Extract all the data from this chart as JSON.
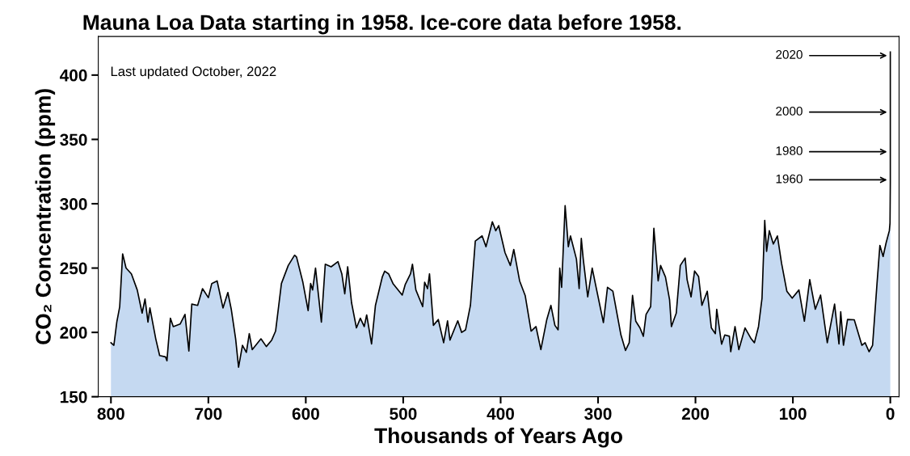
{
  "chart_data": {
    "type": "area",
    "title": "Mauna Loa Data starting in 1958. Ice-core data before 1958.",
    "xlabel": "Thousands of Years Ago",
    "ylabel": "CO₂ Concentration (ppm)",
    "annotations": [
      "Last updated October, 2022",
      "2020",
      "2000",
      "1980",
      "1960"
    ],
    "x": [
      800,
      797,
      794,
      791,
      788,
      784.5,
      779,
      773,
      768,
      765,
      762,
      760,
      754,
      750,
      744,
      742.5,
      739,
      736,
      729,
      724,
      720,
      717,
      711,
      706,
      700,
      696.5,
      691,
      685,
      680,
      676.5,
      672,
      669,
      665,
      661,
      658,
      655,
      646,
      640.5,
      635,
      631,
      625,
      618,
      611.5,
      609.5,
      603,
      597.6,
      595,
      593,
      590,
      584,
      580,
      574,
      567,
      563,
      560,
      557,
      553,
      548,
      544,
      540,
      537.5,
      532.5,
      528.5,
      521.5,
      519,
      515,
      510.5,
      501,
      498,
      492.5,
      490.5,
      487,
      480,
      478,
      475,
      473,
      469,
      464,
      458.5,
      454.5,
      452,
      444,
      440,
      436,
      431,
      426,
      419,
      415,
      408.5,
      405,
      402,
      395.5,
      390,
      386.5,
      380.5,
      374.8,
      368.7,
      363.7,
      358.7,
      352.6,
      348.4,
      344.3,
      341,
      339.3,
      337.4,
      333.8,
      330.5,
      328.3,
      322.2,
      319.4,
      317.2,
      315.2,
      310.6,
      306,
      302.8,
      294.5,
      290.3,
      284.8,
      276.5,
      271.8,
      268,
      264.6,
      261.3,
      257,
      253.5,
      250.7,
      246,
      242.7,
      238.3,
      235.8,
      230.8,
      226.6,
      224.7,
      219.7,
      215.6,
      210.6,
      208.6,
      204.5,
      200.9,
      196.8,
      193.4,
      187.9,
      183.7,
      179.6,
      178.2,
      173.2,
      169.9,
      165.2,
      163.8,
      159.4,
      155.5,
      149.1,
      142.8,
      139.5,
      135.3,
      131.7,
      128.9,
      127,
      124.2,
      120.1,
      115.9,
      111.7,
      106.2,
      100.7,
      93.8,
      88.2,
      82.7,
      77,
      71.6,
      64.7,
      57.2,
      52.7,
      50.9,
      48.1,
      43.9,
      37,
      29.2,
      25.9,
      21.8,
      18.2,
      13.5,
      10.7,
      7.4,
      4.3,
      1,
      0.3,
      0,
      0,
      0,
      0
    ],
    "series": [
      {
        "color": "#c5d9f1",
        "values": [
          192,
          190,
          208,
          220,
          261,
          250,
          245.5,
          233,
          215,
          226,
          208,
          219,
          195,
          182,
          181,
          178,
          211,
          204.5,
          206.5,
          214,
          185.5,
          222,
          221,
          234,
          227,
          238,
          240,
          219,
          231,
          218,
          195,
          173,
          190,
          184.5,
          199,
          186.6,
          195,
          189,
          194,
          201,
          238,
          252,
          260,
          258.6,
          239,
          217,
          238,
          233,
          250,
          208,
          253,
          251,
          255,
          245.5,
          230,
          251,
          223,
          203.5,
          211,
          204.5,
          213.6,
          191,
          221,
          243,
          247.6,
          245.5,
          238,
          229,
          237,
          245.5,
          253,
          233,
          220,
          239,
          234,
          245.5,
          205.5,
          210,
          192,
          209,
          194,
          209,
          200,
          202,
          221,
          271,
          275,
          266.6,
          286,
          279,
          283,
          262,
          252,
          264.5,
          240,
          228.7,
          201,
          204.5,
          186.6,
          210,
          221,
          205.5,
          202,
          250,
          235,
          298.5,
          266.6,
          275,
          257,
          234,
          273,
          257,
          227.6,
          250,
          238,
          207.6,
          235,
          232,
          198,
          186,
          192,
          228.7,
          208.7,
          203.5,
          197,
          214,
          220,
          281,
          240,
          252,
          243,
          225.5,
          204.5,
          215,
          252,
          257.8,
          241,
          227.6,
          247.7,
          243.4,
          221,
          232,
          203.5,
          199,
          218,
          190.8,
          198,
          197,
          185,
          204.5,
          186.6,
          203.5,
          195,
          192,
          204.5,
          226.6,
          287,
          263,
          279,
          268.7,
          275,
          254,
          232,
          226.6,
          233,
          208.7,
          241,
          218,
          229,
          192,
          222,
          191,
          216,
          190,
          210,
          209.8,
          190,
          192,
          185,
          190,
          239.6,
          267.6,
          259,
          269.7,
          279,
          285,
          316,
          340,
          370,
          418
        ]
      }
    ],
    "xlim": [
      813,
      -9
    ],
    "ylim": [
      150,
      430
    ],
    "xticks": [
      800,
      700,
      600,
      500,
      400,
      300,
      200,
      100,
      0
    ],
    "yticks": [
      150,
      200,
      250,
      300,
      350,
      400
    ],
    "grid": false,
    "legend": false
  }
}
